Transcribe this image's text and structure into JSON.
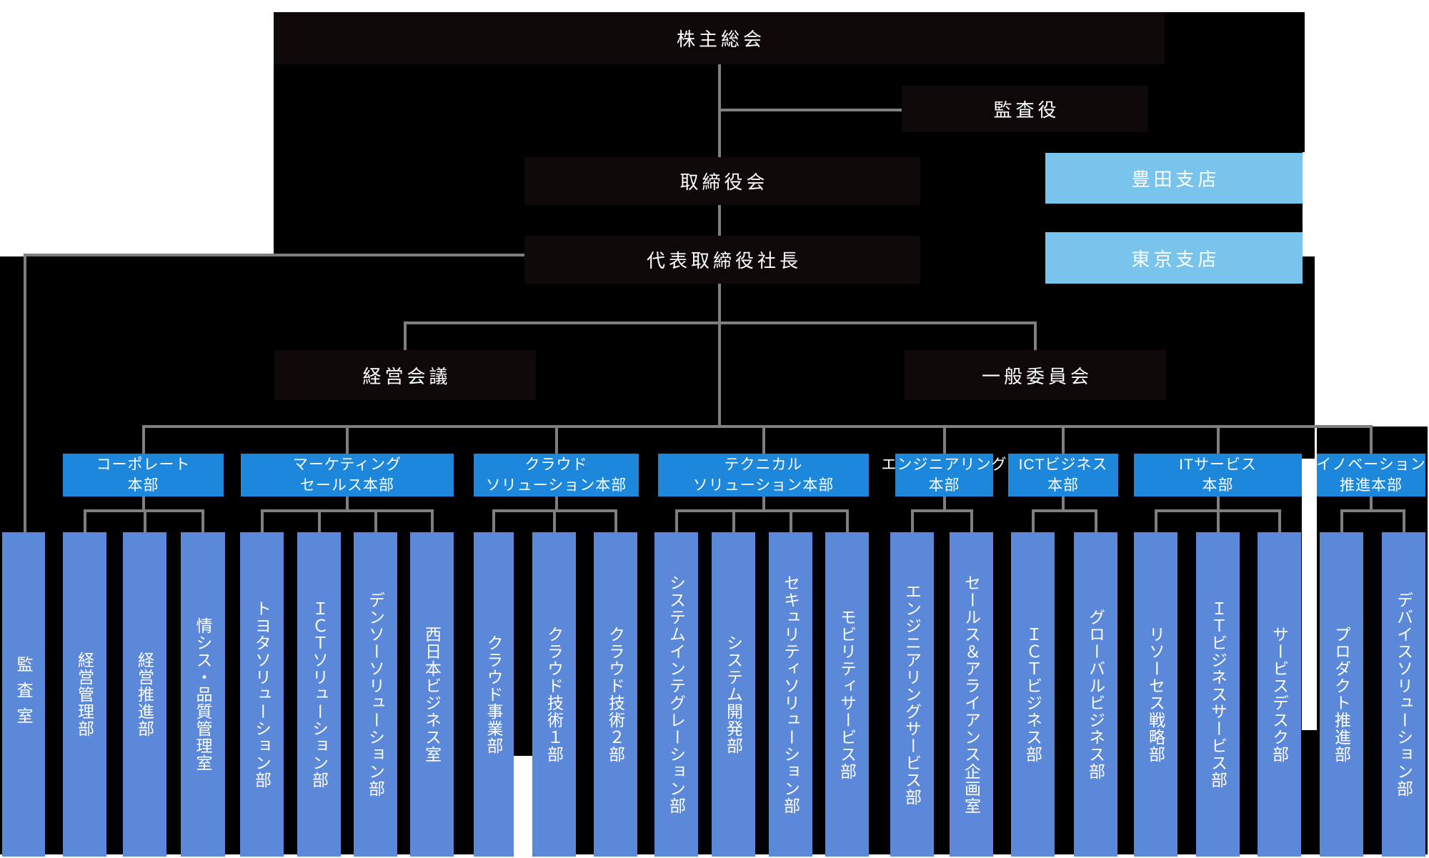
{
  "org_chart": {
    "colors": {
      "background_panel": "#000000",
      "governance_node": "#0e0809",
      "connector_line": "#7f7f7f",
      "branch_blue": "#79c4ec",
      "division_blue": "#1c87db",
      "department_blue": "#5b88d8",
      "text": "#ffffff"
    },
    "governance_nodes": [
      {
        "id": "shareholders-meeting",
        "label": "株主総会"
      },
      {
        "id": "auditor",
        "label": "監査役"
      },
      {
        "id": "board-of-directors",
        "label": "取締役会"
      },
      {
        "id": "president",
        "label": "代表取締役社長"
      },
      {
        "id": "management-meeting",
        "label": "経営会議"
      },
      {
        "id": "general-committee",
        "label": "一般委員会"
      }
    ],
    "branch_offices": [
      {
        "id": "toyoda-branch",
        "label": "豊田支店"
      },
      {
        "id": "tokyo-branch",
        "label": "東京支店"
      }
    ],
    "audit_office": {
      "id": "audit-office",
      "label": "監査室"
    },
    "divisions": [
      {
        "id": "corporate-division",
        "label_lines": [
          "コーポレート",
          "本部"
        ],
        "departments": [
          {
            "id": "management-control-dept",
            "label": "経営管理部"
          },
          {
            "id": "management-promotion-dept",
            "label": "経営推進部"
          },
          {
            "id": "infosys-quality-control-office",
            "label": "情シス・品質管理室"
          }
        ]
      },
      {
        "id": "marketing-sales-division",
        "label_lines": [
          "マーケティング",
          "セールス本部"
        ],
        "departments": [
          {
            "id": "toyota-solution-dept",
            "label": "トヨタソリューション部"
          },
          {
            "id": "ict-solution-dept",
            "label": "ＩＣＴソリューション部"
          },
          {
            "id": "denso-solution-dept",
            "label": "デンソーソリューション部"
          },
          {
            "id": "west-japan-business-office",
            "label": "西日本ビジネス室"
          }
        ]
      },
      {
        "id": "cloud-solution-division",
        "label_lines": [
          "クラウド",
          "ソリューション本部"
        ],
        "departments": [
          {
            "id": "cloud-business-dept",
            "label": "クラウド事業部"
          },
          {
            "id": "cloud-technology-1-dept",
            "label": "クラウド技術１部"
          },
          {
            "id": "cloud-technology-2-dept",
            "label": "クラウド技術２部"
          }
        ]
      },
      {
        "id": "technical-solution-division",
        "label_lines": [
          "テクニカル",
          "ソリューション本部"
        ],
        "departments": [
          {
            "id": "system-integration-dept",
            "label": "システムインテグレーション部"
          },
          {
            "id": "system-development-dept",
            "label": "システム開発部"
          },
          {
            "id": "security-solution-dept",
            "label": "セキュリティソリューション部"
          },
          {
            "id": "mobility-service-dept",
            "label": "モビリティサービス部"
          }
        ]
      },
      {
        "id": "engineering-division",
        "label_lines": [
          "エンジニアリング",
          "本部"
        ],
        "departments": [
          {
            "id": "engineering-service-dept",
            "label": "エンジニアリングサービス部"
          },
          {
            "id": "sales-alliance-planning-office",
            "label": "セールス＆アライアンス企画室"
          }
        ]
      },
      {
        "id": "ict-business-division",
        "label_lines": [
          "ICTビジネス",
          "本部"
        ],
        "departments": [
          {
            "id": "ict-business-dept",
            "label": "ＩＣＴビジネス部"
          },
          {
            "id": "global-business-dept",
            "label": "グローバルビジネス部"
          }
        ]
      },
      {
        "id": "it-service-division",
        "label_lines": [
          "ITサービス",
          "本部"
        ],
        "departments": [
          {
            "id": "resource-strategy-dept",
            "label": "リソーセス戦略部"
          },
          {
            "id": "it-business-service-dept",
            "label": "ＩＴビジネスサービス部"
          },
          {
            "id": "service-desk-dept",
            "label": "サービスデスク部"
          }
        ]
      },
      {
        "id": "innovation-promotion-division",
        "label_lines": [
          "イノベーション",
          "推進本部"
        ],
        "departments": [
          {
            "id": "product-promotion-dept",
            "label": "プロダクト推進部"
          },
          {
            "id": "device-solution-dept",
            "label": "デバイスソリューション部"
          }
        ]
      }
    ]
  }
}
